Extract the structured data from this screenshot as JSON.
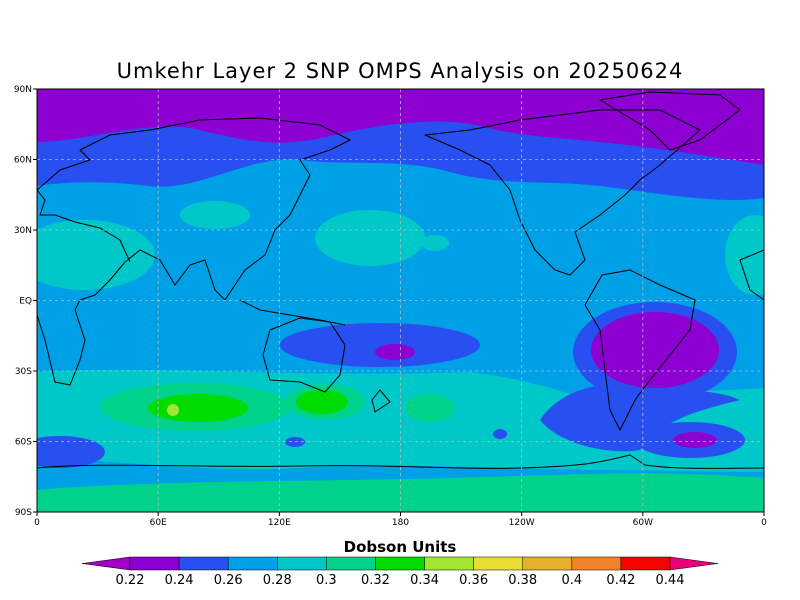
{
  "title": "Umkehr Layer 2 SNP OMPS Analysis on 20250624",
  "lat_labels": [
    "90N",
    "60N",
    "30N",
    "EQ",
    "30S",
    "60S",
    "90S"
  ],
  "lon_labels": [
    "0",
    "60E",
    "120E",
    "180",
    "120W",
    "60W",
    "0"
  ],
  "colorbar": {
    "label": "Dobson Units",
    "levels": [
      0.22,
      0.24,
      0.26,
      0.28,
      0.3,
      0.32,
      0.34,
      0.36,
      0.38,
      0.4,
      0.42,
      0.44
    ],
    "colors": [
      "#a000c8",
      "#8c00d2",
      "#2850f0",
      "#00a0e6",
      "#00c8c8",
      "#00d28c",
      "#00dc00",
      "#a0e632",
      "#e6dc32",
      "#e6af2d",
      "#f08228",
      "#fa0000",
      "#e6007a"
    ]
  }
}
